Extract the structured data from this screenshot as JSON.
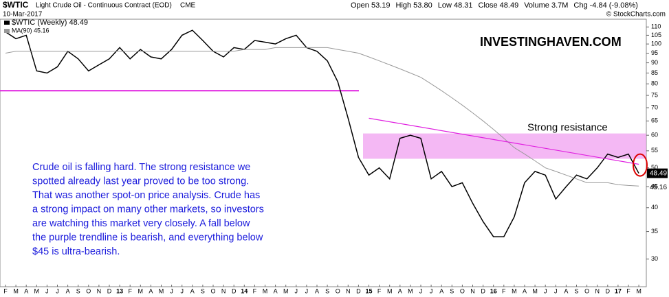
{
  "chart_data": {
    "type": "line",
    "title": "$WTIC",
    "subtitle": "Light Crude Oil - Continuous Contract (EOD)",
    "exchange": "CME",
    "date": "10-Mar-2017",
    "stats": [
      "Open 53.19",
      "High 53.80",
      "Low 48.31",
      "Close 48.49",
      "Volume 3.7M",
      "Chg -4.84 (-9.08%)"
    ],
    "source": "© StockCharts.com",
    "watermark": "INVESTINGHAVEN.COM",
    "band_label": "Strong resistance",
    "note": [
      "Crude oil is falling hard. The strong resistance we",
      "spotted already last year proved to be too strong.",
      "That was another spot-on price analysis. Crude has",
      "a strong impact on many other markets, so investors",
      "are watching this market very closely. A fall below",
      "the purple trendline is bearish, and everything below",
      "$45 is ultra-bearish."
    ],
    "categories": [
      "F",
      "M",
      "A",
      "M",
      "J",
      "J",
      "A",
      "S",
      "O",
      "N",
      "D",
      "13",
      "F",
      "M",
      "A",
      "M",
      "J",
      "J",
      "A",
      "S",
      "O",
      "N",
      "D",
      "14",
      "F",
      "M",
      "A",
      "M",
      "J",
      "J",
      "A",
      "S",
      "O",
      "N",
      "D",
      "15",
      "F",
      "M",
      "A",
      "M",
      "J",
      "J",
      "A",
      "S",
      "O",
      "N",
      "D",
      "16",
      "F",
      "M",
      "A",
      "M",
      "J",
      "J",
      "A",
      "S",
      "O",
      "N",
      "D",
      "17",
      "F",
      "M"
    ],
    "series": [
      {
        "name": "$WTIC (Weekly) 48.49",
        "color": "#000000",
        "values": [
          107,
          103,
          105,
          86,
          85,
          88,
          96,
          92,
          86,
          89,
          92,
          98,
          92,
          97,
          93,
          92,
          97,
          105,
          108,
          102,
          96,
          93,
          98,
          97,
          102,
          101,
          100,
          103,
          105,
          98,
          96,
          91,
          81,
          66,
          53,
          48,
          50,
          47,
          59,
          60,
          59,
          47,
          49,
          45,
          46,
          41,
          37,
          34,
          34,
          38,
          46,
          49,
          48,
          42,
          45,
          48,
          47,
          50,
          54,
          53,
          54,
          48.49
        ]
      },
      {
        "name": "MA(90) 45.16",
        "color": "#999999",
        "values": [
          95,
          96,
          96,
          96,
          96,
          96,
          96,
          96,
          96,
          96,
          96,
          96,
          96,
          96,
          96,
          96,
          96,
          96,
          96,
          96,
          96,
          96,
          96,
          97,
          97,
          97,
          98,
          98,
          98,
          98,
          98,
          98,
          97,
          96,
          95,
          93,
          91,
          89,
          87,
          85,
          83,
          80,
          77,
          74,
          71,
          68,
          65,
          62,
          59,
          56,
          54,
          52,
          50,
          49,
          48,
          47,
          46,
          46,
          46,
          45.5,
          45.3,
          45.16
        ]
      }
    ],
    "ylim": [
      26,
      114
    ],
    "yticks": [
      30,
      35,
      40,
      45,
      50,
      55,
      60,
      65,
      70,
      75,
      80,
      85,
      90,
      95,
      100,
      105,
      110
    ],
    "log_scale": true,
    "hline": {
      "value": 77,
      "color": "#e020e0"
    },
    "band": {
      "from": 52.6,
      "to": 60.6,
      "color": "#f0a0f0"
    },
    "trendline": {
      "values": [
        66,
        51
      ],
      "color": "#e020e0"
    }
  }
}
